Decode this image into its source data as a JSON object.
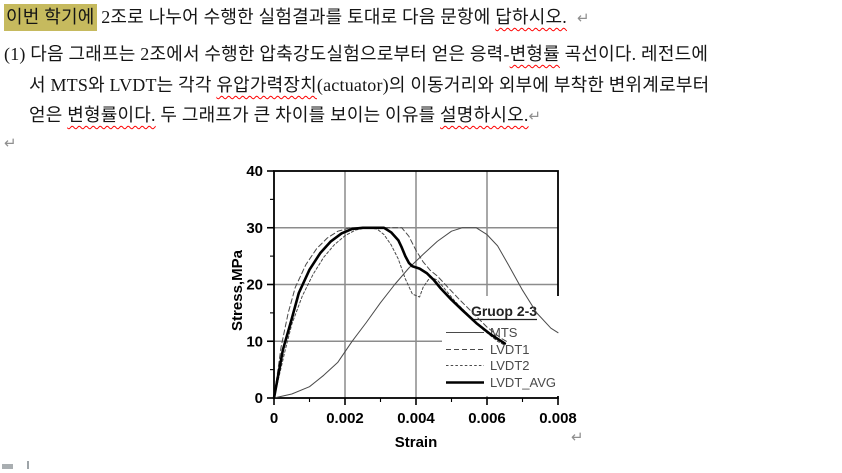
{
  "colors": {
    "highlight": "#c6ba5e",
    "spell": "#ff0000",
    "mark": "#8f8f8f",
    "grid": "#8c8c8c",
    "frame": "#000000",
    "legend_title": "#222222",
    "legend_text": "#4a4a4a"
  },
  "doc": {
    "p1": {
      "highlight": "이번 학기에",
      "t1": " 2조로 나누어 수행한 실험결과를 토대로 다음 문항에 ",
      "bad1": "답하시오.",
      "mark": "↵"
    },
    "p2": {
      "t1": "(1) 다음 그래프는 2조에서 수행한 압축강도실험으로부터 얻은 응력-",
      "bad1": "변형률",
      "t2": " 곡선이다. 레전드에"
    },
    "p3": {
      "t1": "서 MTS와 LVDT는 각각 ",
      "bad1": "유압가력장치",
      "t2": "(actuator)의 이동거리와 외부에 부착한 변위계로부터"
    },
    "p4": {
      "t1": "얻은 ",
      "bad1": "변형률이다.",
      "t2": " 두 그래프가 큰 차이를 보이는 이유를 ",
      "bad2": "설명하시오.",
      "mark": "↵"
    },
    "p5": {
      "mark": "↵"
    },
    "chart_mark": "↵"
  },
  "chart_data": {
    "type": "line",
    "xlabel": "Strain",
    "ylabel": "Stress,MPa",
    "xlim": [
      0,
      0.008
    ],
    "ylim": [
      0,
      40
    ],
    "xticks": [
      0,
      0.002,
      0.004,
      0.006,
      0.008
    ],
    "yticks": [
      0,
      10,
      20,
      30,
      40
    ],
    "xminor": [
      0.001,
      0.003,
      0.005,
      0.007
    ],
    "yminor": [
      5,
      15,
      25,
      35
    ],
    "grid": true,
    "legend": {
      "title": "Gruop 2-3",
      "position": "inside-right-middle"
    },
    "series": [
      {
        "name": "MTS",
        "style": "solid",
        "width": 1,
        "color": "#4a4a4a",
        "points": [
          [
            0,
            0
          ],
          [
            0.0005,
            0.7
          ],
          [
            0.001,
            2
          ],
          [
            0.0014,
            4
          ],
          [
            0.0018,
            6.3
          ],
          [
            0.0022,
            10
          ],
          [
            0.0026,
            13.3
          ],
          [
            0.003,
            16.8
          ],
          [
            0.0034,
            20
          ],
          [
            0.0038,
            22.9
          ],
          [
            0.0042,
            25.3
          ],
          [
            0.0046,
            27.6
          ],
          [
            0.005,
            29.4
          ],
          [
            0.0053,
            30
          ],
          [
            0.0057,
            30
          ],
          [
            0.006,
            28.8
          ],
          [
            0.0063,
            26.8
          ],
          [
            0.0066,
            23.5
          ],
          [
            0.007,
            19
          ],
          [
            0.0074,
            15
          ],
          [
            0.0078,
            12.3
          ],
          [
            0.008,
            11.5
          ]
        ]
      },
      {
        "name": "LVDT1",
        "style": "dashed",
        "dash": "5,3",
        "width": 1,
        "color": "#4a4a4a",
        "points": [
          [
            0,
            0
          ],
          [
            0.0002,
            9
          ],
          [
            0.0004,
            15
          ],
          [
            0.0006,
            19.5
          ],
          [
            0.0009,
            23.5
          ],
          [
            0.0012,
            26.3
          ],
          [
            0.0015,
            28.2
          ],
          [
            0.0018,
            29.4
          ],
          [
            0.0021,
            29.9
          ],
          [
            0.0024,
            30
          ],
          [
            0.0036,
            30
          ],
          [
            0.0038,
            28.5
          ],
          [
            0.004,
            26
          ],
          [
            0.0042,
            24
          ],
          [
            0.0044,
            22.5
          ],
          [
            0.0046,
            21.5
          ],
          [
            0.0049,
            19.5
          ],
          [
            0.0052,
            17.5
          ],
          [
            0.0056,
            15
          ],
          [
            0.006,
            12.5
          ],
          [
            0.0064,
            10.5
          ],
          [
            0.0066,
            9.8
          ]
        ]
      },
      {
        "name": "LVDT2",
        "style": "dashed",
        "dash": "2.5,2.2",
        "width": 1,
        "color": "#4a4a4a",
        "points": [
          [
            0,
            0
          ],
          [
            0.0003,
            8
          ],
          [
            0.0005,
            13
          ],
          [
            0.0008,
            18
          ],
          [
            0.0011,
            21.8
          ],
          [
            0.0014,
            24.8
          ],
          [
            0.0017,
            27
          ],
          [
            0.002,
            28.6
          ],
          [
            0.0023,
            29.6
          ],
          [
            0.0026,
            30
          ],
          [
            0.0029,
            29.8
          ],
          [
            0.0031,
            28.8
          ],
          [
            0.0033,
            27
          ],
          [
            0.0035,
            24.5
          ],
          [
            0.0037,
            21
          ],
          [
            0.0039,
            18.3
          ],
          [
            0.0041,
            17.8
          ],
          [
            0.0042,
            19.5
          ],
          [
            0.0044,
            21.3
          ],
          [
            0.0046,
            20.8
          ],
          [
            0.0048,
            19.3
          ],
          [
            0.0051,
            17
          ],
          [
            0.0055,
            14.5
          ],
          [
            0.0059,
            12
          ],
          [
            0.0063,
            10
          ],
          [
            0.0065,
            9.3
          ]
        ]
      },
      {
        "name": "LVDT_AVG",
        "style": "solid",
        "width": 2.6,
        "color": "#000000",
        "points": [
          [
            0,
            0
          ],
          [
            0.00025,
            8.5
          ],
          [
            0.0005,
            14
          ],
          [
            0.0007,
            18.5
          ],
          [
            0.001,
            22.6
          ],
          [
            0.0013,
            25.5
          ],
          [
            0.0016,
            27.6
          ],
          [
            0.0019,
            29
          ],
          [
            0.0022,
            29.8
          ],
          [
            0.0025,
            30
          ],
          [
            0.0031,
            30
          ],
          [
            0.0033,
            29.2
          ],
          [
            0.0035,
            27.8
          ],
          [
            0.0036,
            26.5
          ],
          [
            0.0037,
            25
          ],
          [
            0.0038,
            23.8
          ],
          [
            0.0039,
            23.2
          ],
          [
            0.0041,
            22.8
          ],
          [
            0.0043,
            22
          ],
          [
            0.0045,
            20.8
          ],
          [
            0.0047,
            19.3
          ],
          [
            0.005,
            17.3
          ],
          [
            0.0053,
            15.5
          ],
          [
            0.0057,
            13.2
          ],
          [
            0.0061,
            11.2
          ],
          [
            0.0065,
            9.6
          ]
        ]
      }
    ]
  }
}
